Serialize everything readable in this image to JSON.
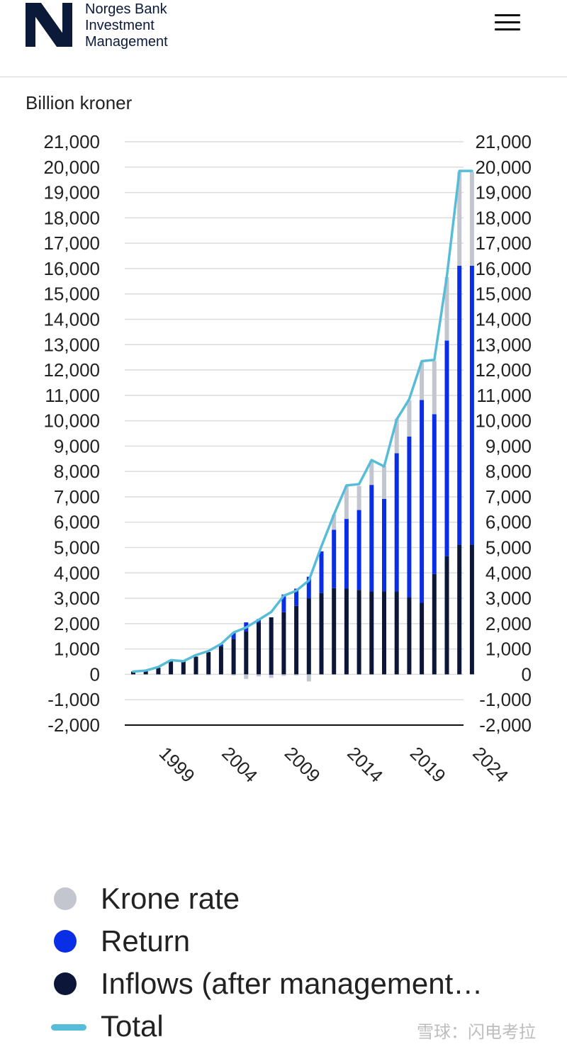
{
  "header": {
    "brand_line1": "Norges Bank",
    "brand_line2": "Investment",
    "brand_line3": "Management",
    "logo_icon": "nbim-n-logo-icon",
    "menu_icon": "hamburger-menu-icon"
  },
  "chart_data": {
    "type": "bar",
    "title": "",
    "unit_label": "Billion kroner",
    "ylim": [
      -2000,
      21000
    ],
    "yticks": [
      "21,000",
      "20,000",
      "19,000",
      "18,000",
      "17,000",
      "16,000",
      "15,000",
      "14,000",
      "13,000",
      "12,000",
      "11,000",
      "10,000",
      "9,000",
      "8,000",
      "7,000",
      "6,000",
      "5,000",
      "4,000",
      "3,000",
      "2,000",
      "1,000",
      "0",
      "-1,000",
      "-2,000"
    ],
    "ytick_values": [
      21000,
      20000,
      19000,
      18000,
      17000,
      16000,
      15000,
      14000,
      13000,
      12000,
      11000,
      10000,
      9000,
      8000,
      7000,
      6000,
      5000,
      4000,
      3000,
      2000,
      1000,
      0,
      -1000,
      -2000
    ],
    "x_tick_labels": [
      "1999",
      "2004",
      "2009",
      "2014",
      "2019",
      "2024"
    ],
    "x_tick_years": [
      1999,
      2004,
      2009,
      2014,
      2019,
      2024
    ],
    "years": [
      1997,
      1998,
      1999,
      2000,
      2001,
      2002,
      2003,
      2004,
      2005,
      2006,
      2007,
      2008,
      2009,
      2010,
      2011,
      2012,
      2013,
      2014,
      2015,
      2016,
      2017,
      2018,
      2019,
      2020,
      2021,
      2022,
      2023,
      2024
    ],
    "series": [
      {
        "name": "Inflows (after management fee)",
        "color": "#0b1638",
        "values": [
          110,
          140,
          260,
          540,
          520,
          700,
          880,
          1100,
          1400,
          1700,
          2050,
          2250,
          2450,
          2700,
          3000,
          3200,
          3400,
          3380,
          3330,
          3270,
          3270,
          3270,
          3030,
          2820,
          3960,
          4660,
          5110,
          5110
        ]
      },
      {
        "name": "Return",
        "color": "#0a2ee6",
        "values": [
          0,
          0,
          0,
          0,
          0,
          0,
          0,
          80,
          250,
          350,
          130,
          -20,
          700,
          680,
          850,
          1650,
          2300,
          2750,
          3150,
          4200,
          3650,
          5450,
          6350,
          8000,
          6300,
          8500,
          11000,
          11000
        ]
      },
      {
        "name": "Krone rate",
        "color": "#c4c6cf",
        "values": [
          0,
          0,
          0,
          0,
          -20,
          0,
          -30,
          0,
          -40,
          -180,
          -80,
          -120,
          -60,
          -40,
          -280,
          0,
          600,
          1300,
          950,
          950,
          1300,
          1350,
          1420,
          1500,
          2100,
          2500,
          3700,
          3700
        ]
      },
      {
        "name": "Total",
        "color": "#56bcd8",
        "type": "line",
        "values": [
          110,
          150,
          290,
          560,
          520,
          760,
          920,
          1200,
          1650,
          1850,
          2150,
          2460,
          3100,
          3300,
          3700,
          5050,
          6300,
          7450,
          7500,
          8450,
          8200,
          10050,
          10850,
          12350,
          12400,
          15700,
          19850,
          19850
        ]
      }
    ]
  },
  "legend": {
    "items": [
      {
        "label": "Krone rate",
        "color": "#c4c6cf",
        "kind": "dot"
      },
      {
        "label": "Return",
        "color": "#0a2ee6",
        "kind": "dot"
      },
      {
        "label": "Inflows (after management…",
        "color": "#0b1638",
        "kind": "dot"
      },
      {
        "label": "Total",
        "color": "#56bcd8",
        "kind": "line"
      }
    ]
  },
  "watermark": "雪球：闪电考拉"
}
